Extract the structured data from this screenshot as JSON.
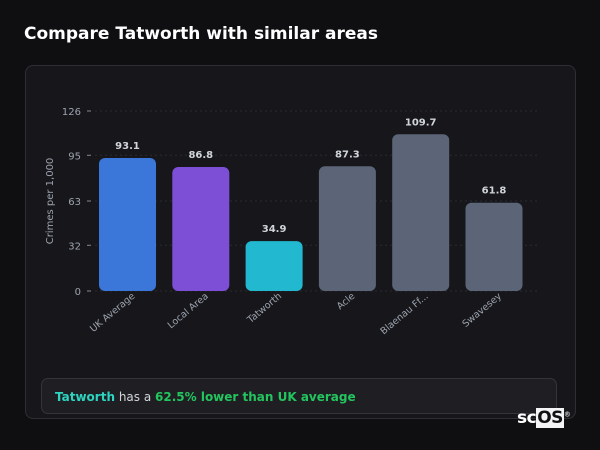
{
  "title": "Compare Tatworth with similar areas",
  "chart_data": {
    "type": "bar",
    "categories": [
      "UK Average",
      "Local Area",
      "Tatworth",
      "Acle",
      "Blaenau Ff...",
      "Swavesey"
    ],
    "values": [
      93.1,
      86.8,
      34.9,
      87.3,
      109.7,
      61.8
    ],
    "value_labels": [
      "93.1",
      "86.8",
      "34.9",
      "87.3",
      "109.7",
      "61.8"
    ],
    "colors": [
      "#3b76d9",
      "#7c4fd6",
      "#22b8cf",
      "#5b6577",
      "#5b6577",
      "#5b6577"
    ],
    "ylabel": "Crimes per 1,000",
    "yticks": [
      0,
      32,
      63,
      95,
      126
    ],
    "ylim": [
      0,
      126
    ],
    "grid": true
  },
  "callout": {
    "place": "Tatworth",
    "middle": " has a ",
    "highlight": "62.5% lower than UK average"
  },
  "logo": {
    "text": "scOS"
  },
  "colors": {
    "accent_place": "#2dd4bf",
    "accent_good": "#22c55e"
  }
}
